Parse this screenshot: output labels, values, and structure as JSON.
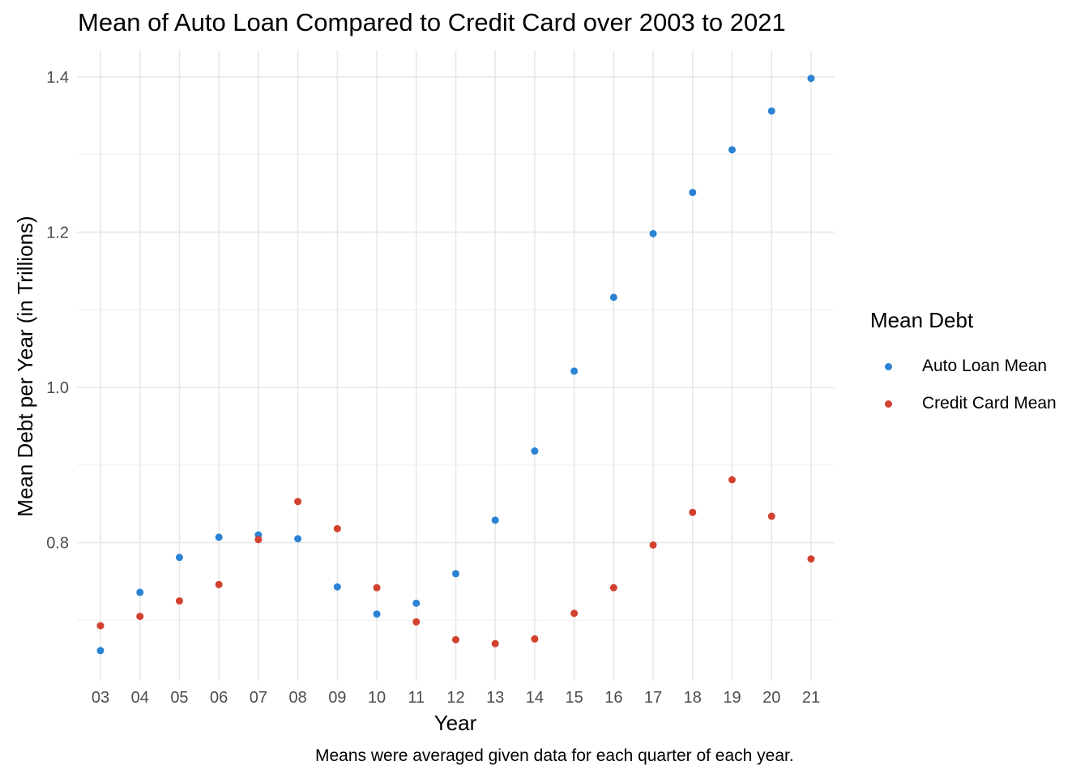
{
  "chart_data": {
    "type": "scatter",
    "title": "Mean of Auto Loan Compared to Credit Card over 2003 to 2021",
    "xlabel": "Year",
    "ylabel": "Mean Debt per Year (in Trillions)",
    "caption": "Means were averaged given data for each quarter of each year.",
    "categories": [
      "03",
      "04",
      "05",
      "06",
      "07",
      "08",
      "09",
      "10",
      "11",
      "12",
      "13",
      "14",
      "15",
      "16",
      "17",
      "18",
      "19",
      "20",
      "21"
    ],
    "ylim": [
      0.64,
      1.43
    ],
    "yticks": [
      0.8,
      1.0,
      1.2,
      1.4
    ],
    "ytick_labels": [
      "0.8",
      "1.0",
      "1.2",
      "1.4"
    ],
    "grid": true,
    "legend_title": "Mean Debt",
    "legend_position": "right",
    "series": [
      {
        "name": "Auto Loan Mean",
        "color": "#2b83d4",
        "values": [
          0.661,
          0.736,
          0.781,
          0.807,
          0.81,
          0.805,
          0.743,
          0.708,
          0.722,
          0.76,
          0.829,
          0.918,
          1.021,
          1.116,
          1.198,
          1.251,
          1.306,
          1.356,
          1.398
        ]
      },
      {
        "name": "Credit Card Mean",
        "color": "#d2412d",
        "values": [
          0.693,
          0.705,
          0.725,
          0.746,
          0.804,
          0.853,
          0.818,
          0.742,
          0.698,
          0.675,
          0.67,
          0.676,
          0.709,
          0.742,
          0.797,
          0.839,
          0.881,
          0.834,
          0.779
        ]
      }
    ]
  }
}
